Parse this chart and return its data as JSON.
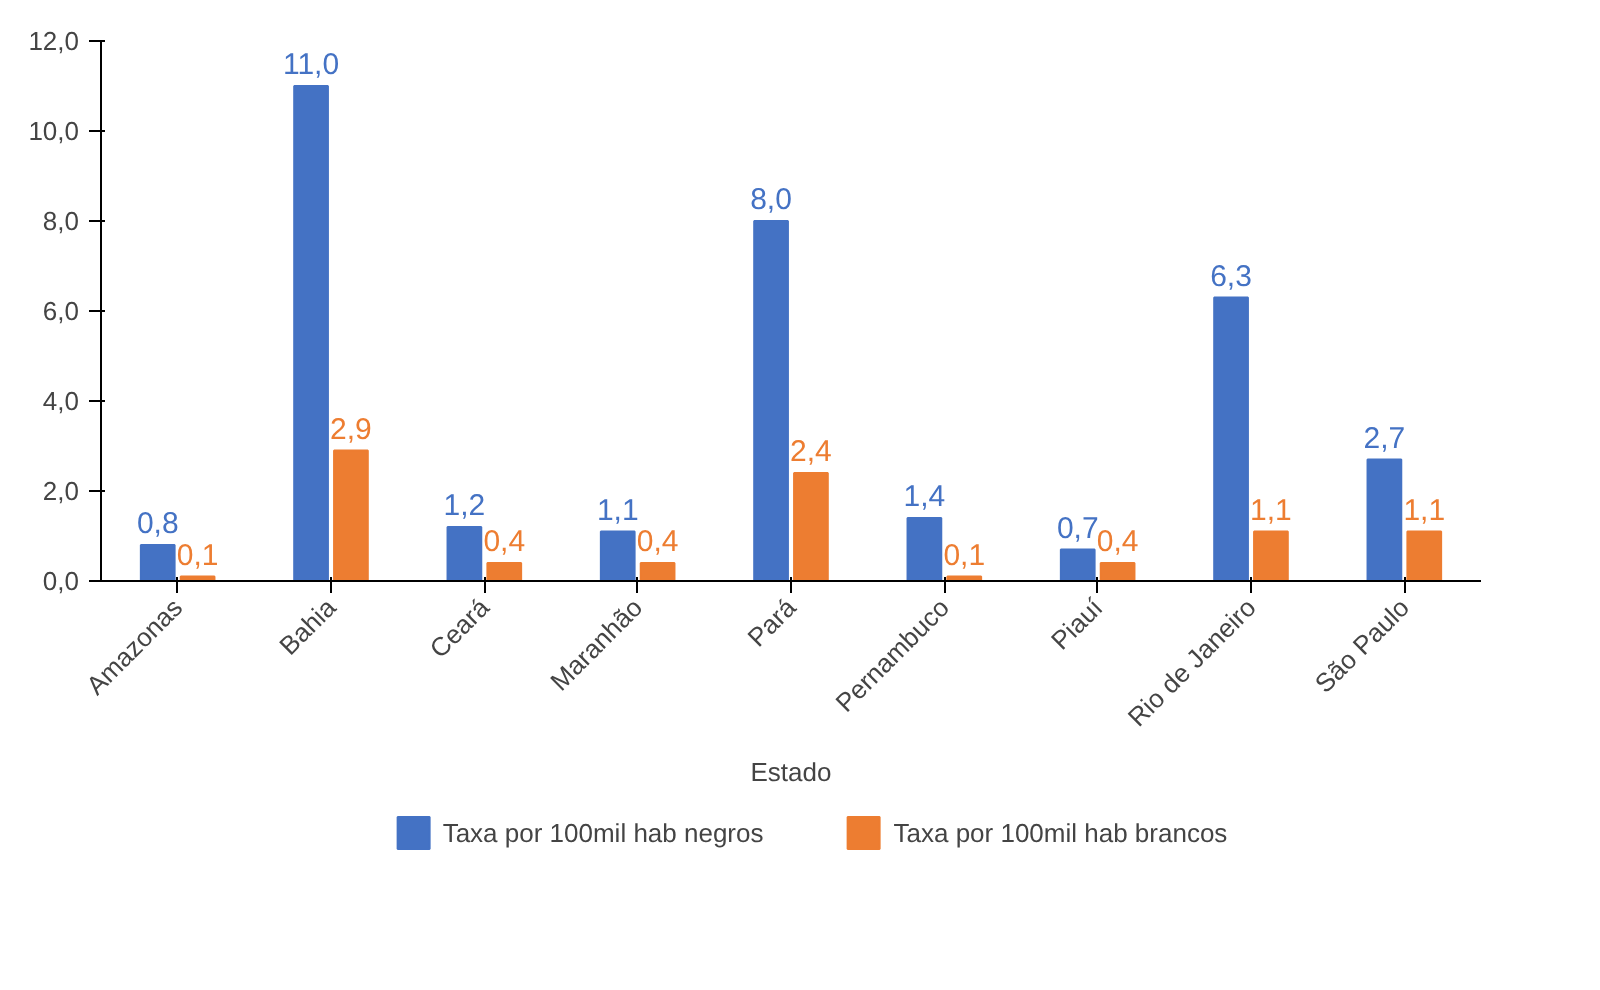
{
  "chart_data": {
    "type": "bar",
    "xlabel": "Estado",
    "categories": [
      "Amazonas",
      "Bahia",
      "Ceará",
      "Maranhão",
      "Pará",
      "Pernambuco",
      "Piauí",
      "Rio de Janeiro",
      "São Paulo"
    ],
    "series": [
      {
        "name": "Taxa por 100mil hab negros",
        "color": "#4472c4",
        "values": [
          0.8,
          11.0,
          1.2,
          1.1,
          8.0,
          1.4,
          0.7,
          6.3,
          2.7
        ],
        "value_labels": [
          "0,8",
          "11,0",
          "1,2",
          "1,1",
          "8,0",
          "1,4",
          "0,7",
          "6,3",
          "2,7"
        ]
      },
      {
        "name": "Taxa por 100mil hab brancos",
        "color": "#ed7d31",
        "values": [
          0.1,
          2.9,
          0.4,
          0.4,
          2.4,
          0.1,
          0.4,
          1.1,
          1.1
        ],
        "value_labels": [
          "0,1",
          "2,9",
          "0,4",
          "0,4",
          "2,4",
          "0,1",
          "0,4",
          "1,1",
          "1,1"
        ]
      }
    ],
    "ylim": [
      0,
      12
    ],
    "yticks": [
      {
        "value": 0,
        "label": "0,0"
      },
      {
        "value": 2,
        "label": "2,0"
      },
      {
        "value": 4,
        "label": "4,0"
      },
      {
        "value": 6,
        "label": "6,0"
      },
      {
        "value": 8,
        "label": "8,0"
      },
      {
        "value": 10,
        "label": "10,0"
      },
      {
        "value": 12,
        "label": "12,0"
      }
    ],
    "grid": false,
    "legend": "bottom"
  }
}
